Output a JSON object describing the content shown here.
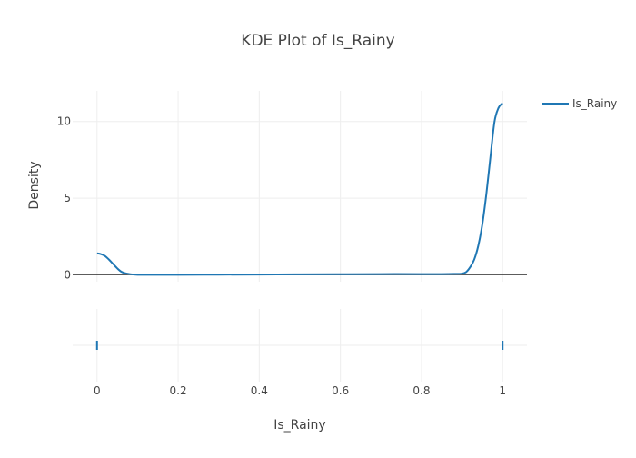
{
  "chart_data": {
    "type": "line",
    "title": "KDE Plot of Is_Rainy",
    "xlabel": "Is_Rainy",
    "ylabel": "Density",
    "xlim": [
      -0.06,
      1.06
    ],
    "ylim": [
      -0.45,
      12.0
    ],
    "x_ticks": [
      0,
      0.2,
      0.4,
      0.6,
      0.8,
      1
    ],
    "x_tick_labels": [
      "0",
      "0.2",
      "0.4",
      "0.6",
      "0.8",
      "1"
    ],
    "y_ticks": [
      0,
      5,
      10
    ],
    "y_tick_labels": [
      "0",
      "5",
      "10"
    ],
    "grid": true,
    "legend_position": "top-right",
    "series": [
      {
        "name": "Is_Rainy",
        "color": "#1f77b4",
        "x": [
          0,
          0.01,
          0.02,
          0.03,
          0.04,
          0.05,
          0.06,
          0.07,
          0.08,
          0.09,
          0.1,
          0.12,
          0.15,
          0.2,
          0.3,
          0.4,
          0.5,
          0.6,
          0.7,
          0.8,
          0.85,
          0.88,
          0.9,
          0.91,
          0.92,
          0.93,
          0.94,
          0.95,
          0.96,
          0.97,
          0.98,
          0.99,
          1.0
        ],
        "y": [
          1.4,
          1.35,
          1.22,
          0.98,
          0.7,
          0.42,
          0.2,
          0.1,
          0.05,
          0.02,
          0.0,
          0.0,
          0.0,
          0.0,
          0.01,
          0.02,
          0.03,
          0.04,
          0.05,
          0.05,
          0.05,
          0.06,
          0.08,
          0.18,
          0.5,
          1.0,
          1.9,
          3.3,
          5.3,
          7.7,
          10.0,
          10.9,
          11.2
        ]
      }
    ],
    "rug": {
      "series": "Is_Rainy",
      "x": [
        0,
        1
      ],
      "color": "#1f77b4"
    }
  }
}
